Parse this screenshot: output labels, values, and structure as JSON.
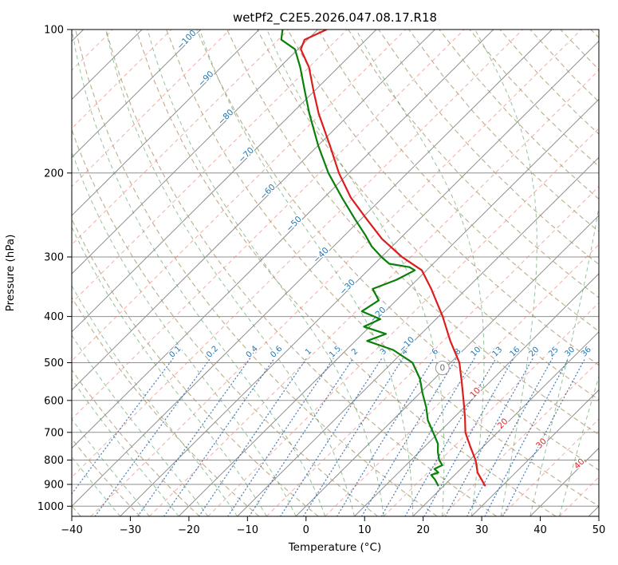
{
  "title": "wetPf2_C2E5.2026.047.08.17.R18",
  "chart_data": {
    "type": "skewt-log-p",
    "xlabel": "Temperature (°C)",
    "ylabel": "Pressure (hPa)",
    "x_ticks": [
      -40,
      -30,
      -20,
      -10,
      0,
      10,
      20,
      30,
      40,
      50
    ],
    "pressure_ticks": [
      100,
      200,
      300,
      400,
      500,
      600,
      700,
      800,
      900,
      1000
    ],
    "x_range": [
      -40,
      50
    ],
    "pressure_range": [
      100,
      1050
    ],
    "skew_deg_per_decade": 82,
    "isotherms": {
      "min": -120,
      "max": 50,
      "step": 10
    },
    "isotherm_minor": {
      "min": -115,
      "max": 45,
      "step": 10
    },
    "dry_adiabats": {
      "min": -40,
      "max": 200,
      "step": 10
    },
    "moist_adiabats": {
      "min": -30,
      "max": 45,
      "step": 5
    },
    "mixing_ratio": {
      "values": [
        0.1,
        0.2,
        0.4,
        0.6,
        1,
        1.5,
        2,
        3,
        4,
        6,
        8,
        10,
        13,
        16,
        20,
        25,
        30,
        36
      ],
      "top_pressure": 490,
      "label_pressure": 478
    },
    "isotherm_labels": [
      {
        "t": -100,
        "p": 106,
        "color": "#1f77b4"
      },
      {
        "t": -90,
        "p": 128,
        "color": "#1f77b4"
      },
      {
        "t": -80,
        "p": 154,
        "color": "#1f77b4"
      },
      {
        "t": -70,
        "p": 185,
        "color": "#1f77b4"
      },
      {
        "t": -60,
        "p": 221,
        "color": "#1f77b4"
      },
      {
        "t": -50,
        "p": 258,
        "color": "#1f77b4"
      },
      {
        "t": -40,
        "p": 300,
        "color": "#1f77b4"
      },
      {
        "t": -30,
        "p": 350,
        "color": "#1f77b4"
      },
      {
        "t": -20,
        "p": 400,
        "color": "#1f77b4"
      },
      {
        "t": -10,
        "p": 462,
        "color": "#1f77b4"
      },
      {
        "t": 0,
        "p": 520,
        "color": "#6e6e6e",
        "circled": true
      },
      {
        "t": 10,
        "p": 583,
        "color": "#d62728"
      },
      {
        "t": 20,
        "p": 677,
        "color": "#d62728"
      },
      {
        "t": 30,
        "p": 745,
        "color": "#d62728"
      },
      {
        "t": 40,
        "p": 822,
        "color": "#d62728"
      }
    ],
    "colors": {
      "grid": "#8f8f8f",
      "isotherm": "#8f8f8f",
      "isotherm_minor": "rgba(240,128,118,0.65)",
      "dry_adiabat": "rgba(175,152,108,0.8)",
      "moist_adiabat": "rgba(60,145,70,0.55)",
      "mixing": "rgba(40,100,170,0.8)",
      "mixing_label": "#1f77b4",
      "frame": "#000000"
    },
    "temperature_profile": {
      "name": "temperature",
      "color": "#dd1c1c",
      "points": [
        [
          905,
          27
        ],
        [
          850,
          23.5
        ],
        [
          800,
          21
        ],
        [
          750,
          17.8
        ],
        [
          700,
          14.5
        ],
        [
          650,
          11.8
        ],
        [
          600,
          8.7
        ],
        [
          550,
          5.3
        ],
        [
          500,
          1.5
        ],
        [
          450,
          -3.8
        ],
        [
          400,
          -9.3
        ],
        [
          350,
          -16
        ],
        [
          320,
          -20.8
        ],
        [
          300,
          -26.5
        ],
        [
          275,
          -33
        ],
        [
          250,
          -39
        ],
        [
          225,
          -45.5
        ],
        [
          200,
          -51.7
        ],
        [
          175,
          -58
        ],
        [
          150,
          -65.4
        ],
        [
          135,
          -70
        ],
        [
          120,
          -75
        ],
        [
          110,
          -79.5
        ],
        [
          105,
          -80.5
        ],
        [
          100,
          -78.5
        ]
      ]
    },
    "dewpoint_profile": {
      "name": "dewpoint",
      "color": "#0b7f0b",
      "points": [
        [
          905,
          19
        ],
        [
          880,
          17.5
        ],
        [
          860,
          16
        ],
        [
          850,
          16.8
        ],
        [
          835,
          15.5
        ],
        [
          820,
          16.2
        ],
        [
          800,
          14.8
        ],
        [
          770,
          13.2
        ],
        [
          740,
          11.8
        ],
        [
          700,
          9
        ],
        [
          660,
          6
        ],
        [
          620,
          3.5
        ],
        [
          580,
          0.5
        ],
        [
          540,
          -2.5
        ],
        [
          500,
          -6.5
        ],
        [
          470,
          -12
        ],
        [
          450,
          -18
        ],
        [
          435,
          -16
        ],
        [
          420,
          -21
        ],
        [
          405,
          -19.5
        ],
        [
          390,
          -24
        ],
        [
          370,
          -23
        ],
        [
          350,
          -26
        ],
        [
          335,
          -23.5
        ],
        [
          320,
          -22
        ],
        [
          315,
          -23.5
        ],
        [
          310,
          -27.5
        ],
        [
          300,
          -30
        ],
        [
          285,
          -33.5
        ],
        [
          270,
          -36.5
        ],
        [
          250,
          -41
        ],
        [
          225,
          -47
        ],
        [
          200,
          -53.5
        ],
        [
          175,
          -60
        ],
        [
          150,
          -67
        ],
        [
          135,
          -71.5
        ],
        [
          120,
          -76.5
        ],
        [
          110,
          -80.5
        ],
        [
          105,
          -84.5
        ],
        [
          100,
          -86
        ]
      ]
    }
  }
}
